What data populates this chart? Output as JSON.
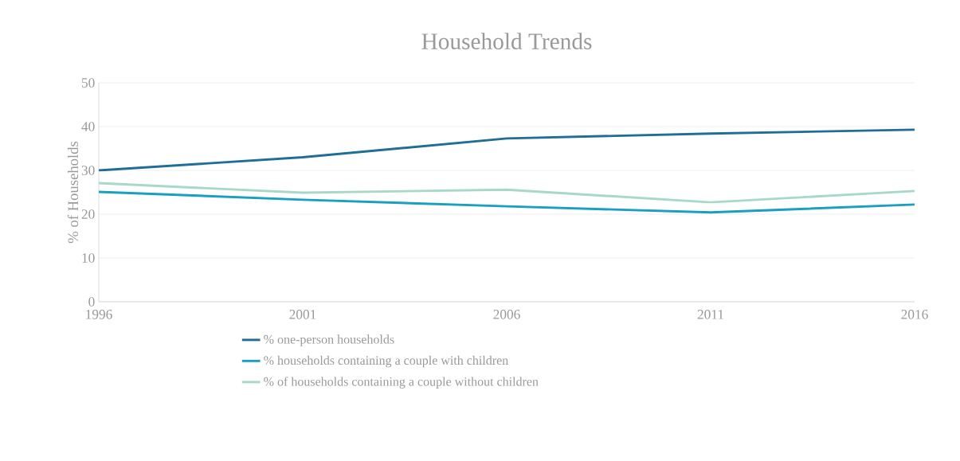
{
  "chart_data": {
    "type": "line",
    "title": "Household Trends",
    "ylabel": "% of Households",
    "x": [
      1996,
      2001,
      2006,
      2011,
      2016
    ],
    "xlim": [
      1996,
      2016
    ],
    "xticks": [
      1996,
      2001,
      2006,
      2011,
      2016
    ],
    "ylim": [
      0,
      50
    ],
    "yticks": [
      0,
      10,
      20,
      30,
      40,
      50
    ],
    "grid": "y",
    "legend": "bottom",
    "marker": "none",
    "line_style": "solid",
    "series": [
      {
        "name": "% one-person households",
        "color": "#1f6e96",
        "values": [
          30,
          33,
          37.3,
          38.4,
          39.3
        ]
      },
      {
        "name": "% households containing a couple with children",
        "color": "#1a9fc0",
        "values": [
          25.1,
          23.3,
          21.8,
          20.4,
          22.2
        ]
      },
      {
        "name": "% of households containing a couple without children",
        "color": "#a8d8c8",
        "values": [
          27.1,
          24.9,
          25.6,
          22.7,
          25.3
        ]
      }
    ]
  }
}
